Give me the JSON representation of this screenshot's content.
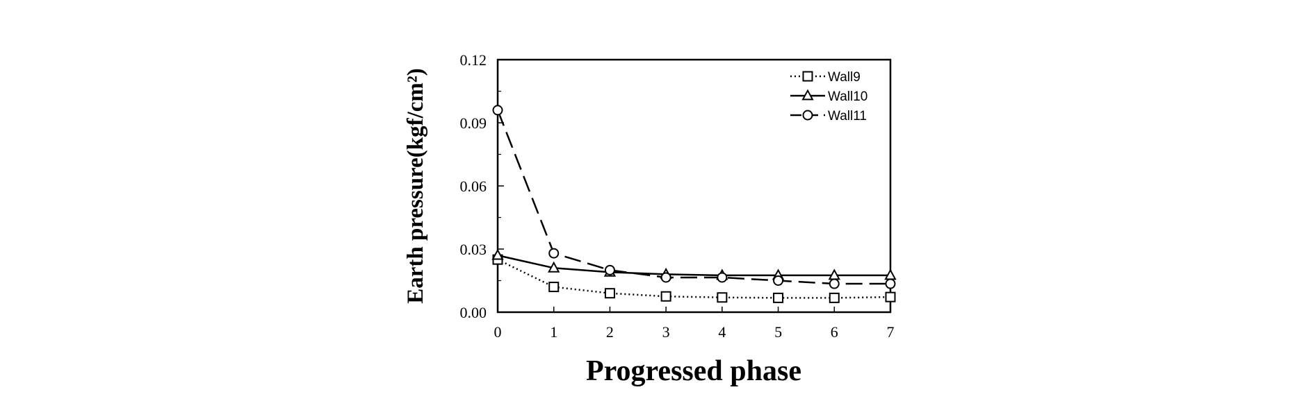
{
  "chart_data": {
    "type": "line",
    "xlabel": "Progressed phase",
    "ylabel": "Earth pressure(kgf/cm²)",
    "x": [
      0,
      1,
      2,
      3,
      4,
      5,
      6,
      7
    ],
    "xlim": [
      0,
      7
    ],
    "ylim": [
      0,
      0.12
    ],
    "xticks": [
      "0",
      "1",
      "2",
      "3",
      "4",
      "5",
      "6",
      "7"
    ],
    "yticks": [
      "0.00",
      "0.03",
      "0.06",
      "0.09",
      "0.12"
    ],
    "grid": false,
    "legend_position": "top-right",
    "series": [
      {
        "name": "Wall9",
        "marker": "square",
        "line_style": "dotted",
        "values": [
          0.025,
          0.012,
          0.009,
          0.0075,
          0.007,
          0.0068,
          0.0068,
          0.0072
        ]
      },
      {
        "name": "Wall10",
        "marker": "triangle",
        "line_style": "solid",
        "values": [
          0.027,
          0.021,
          0.019,
          0.018,
          0.0175,
          0.0175,
          0.0175,
          0.0175
        ]
      },
      {
        "name": "Wall11",
        "marker": "circle",
        "line_style": "dashed",
        "values": [
          0.096,
          0.028,
          0.02,
          0.0165,
          0.0165,
          0.015,
          0.0135,
          0.0135
        ]
      }
    ]
  }
}
